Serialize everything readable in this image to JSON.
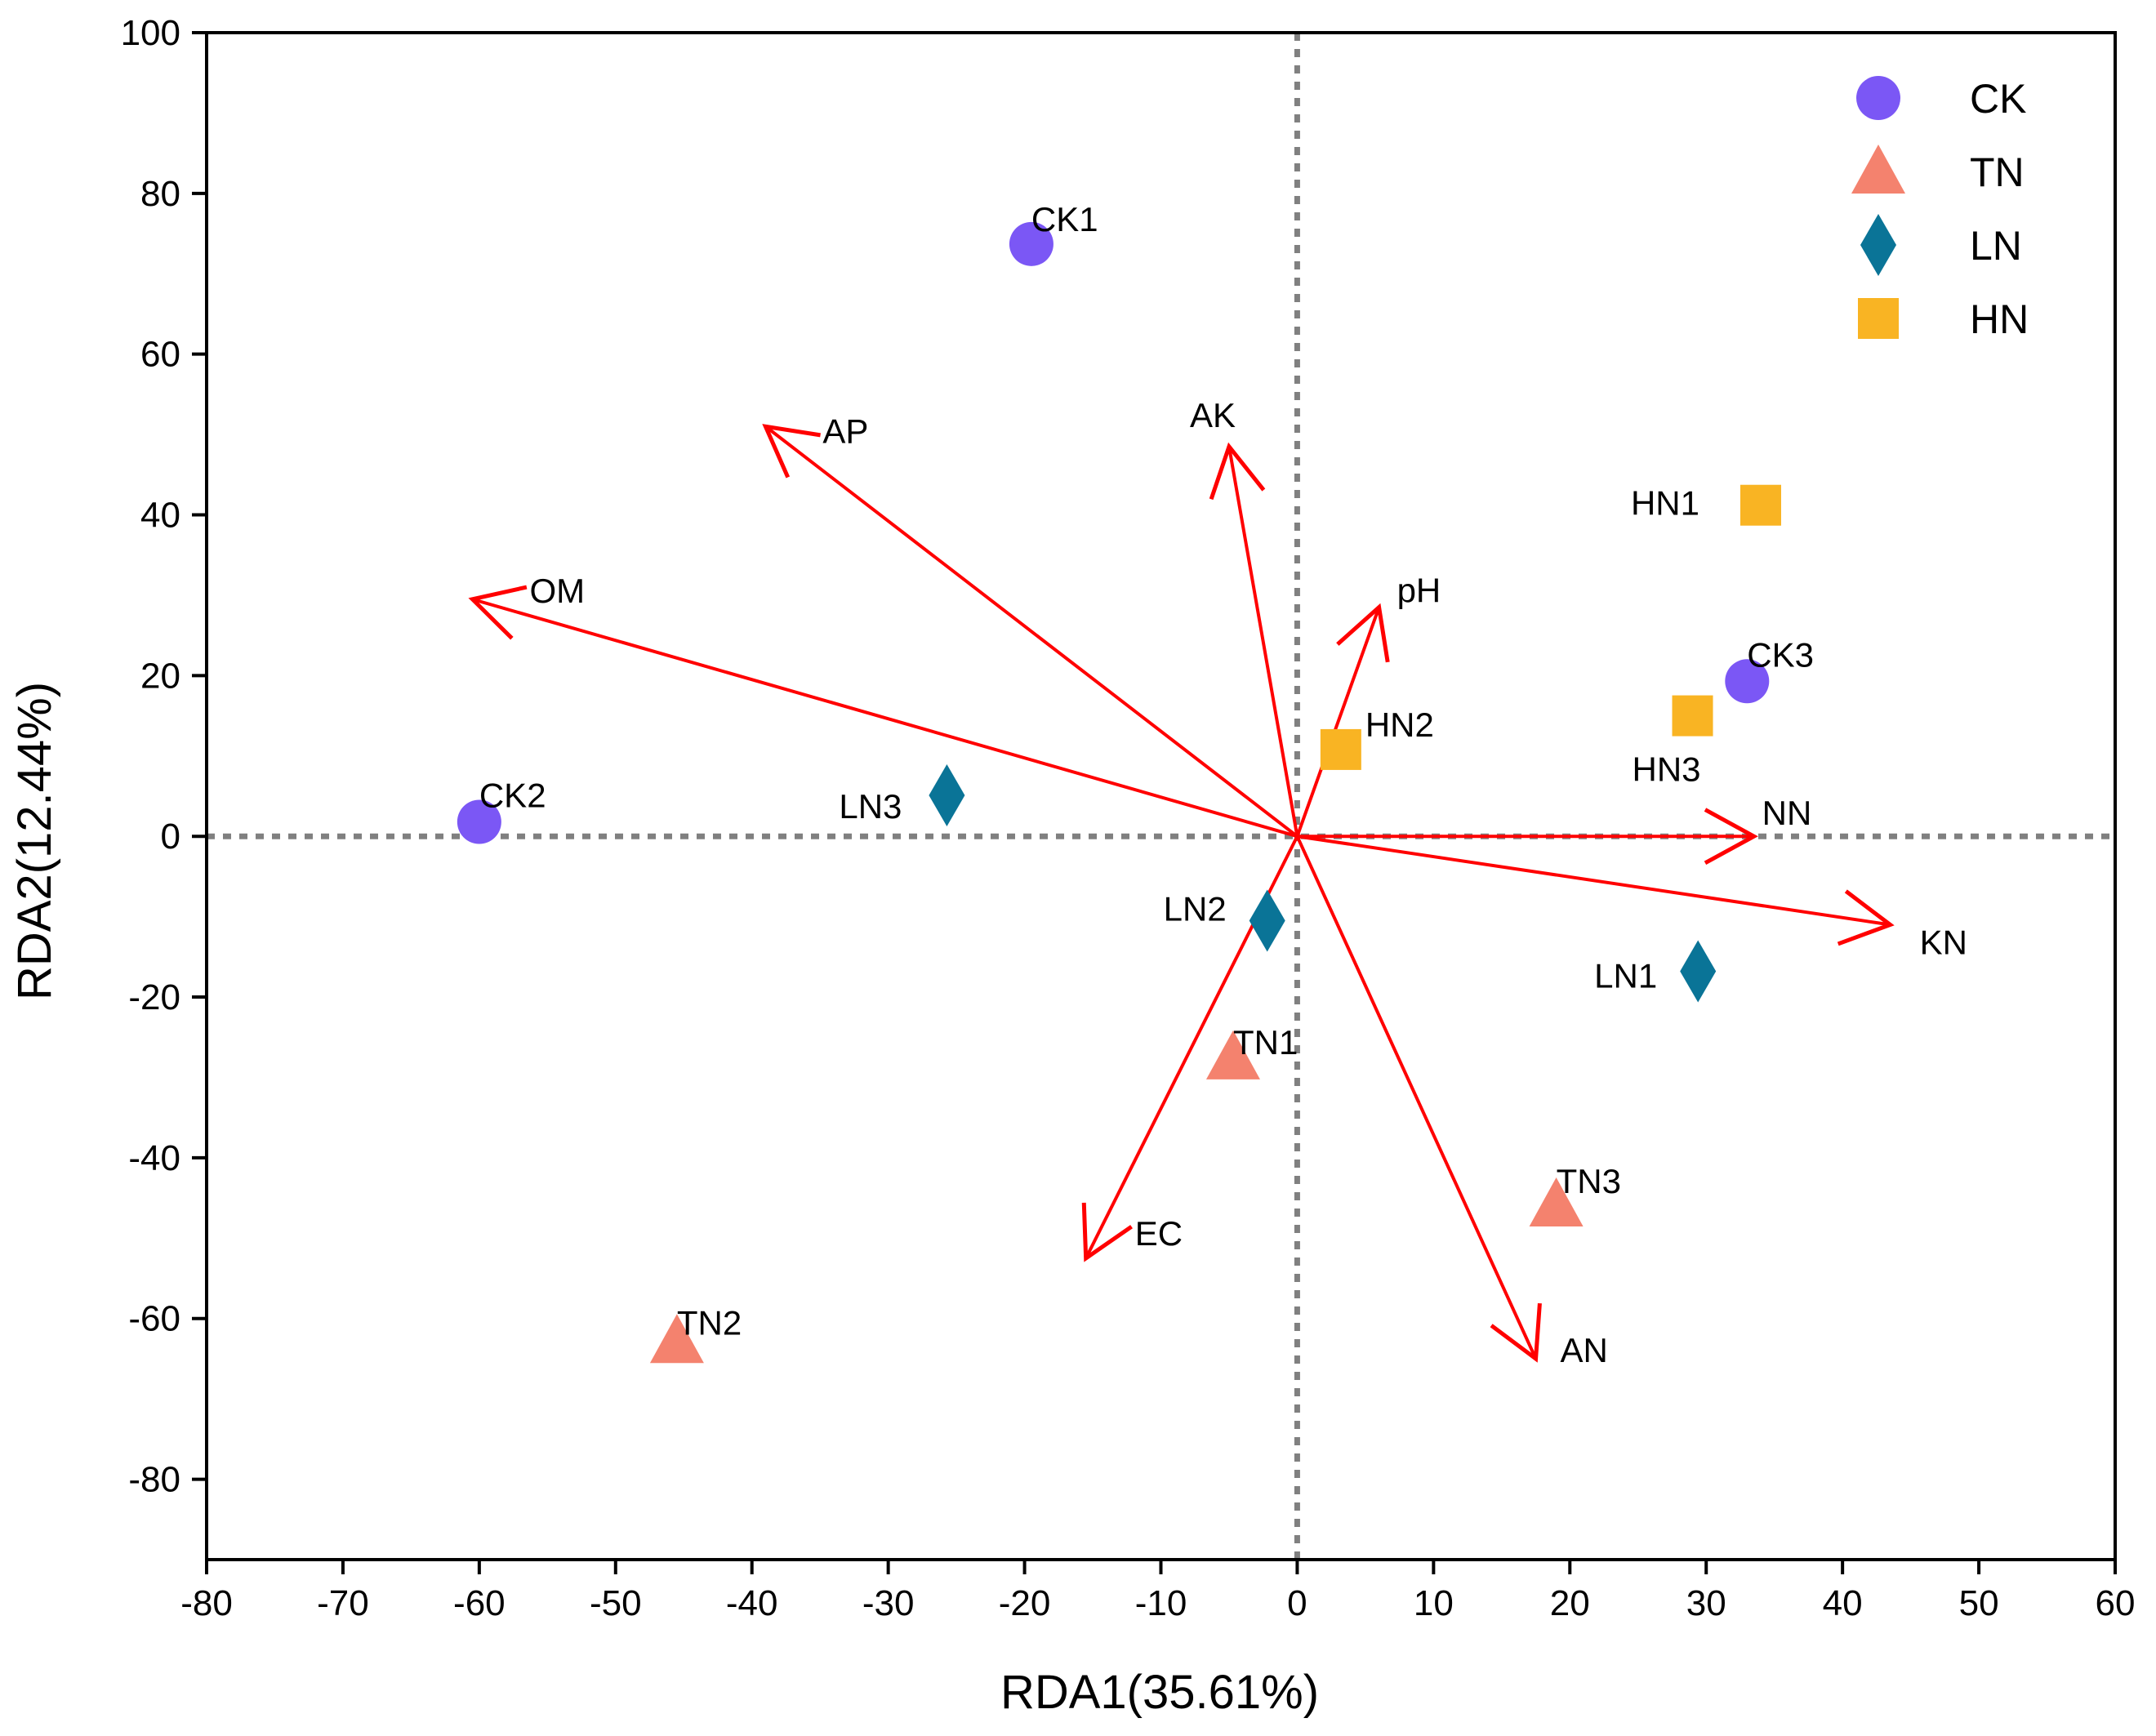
{
  "chart_data": {
    "type": "scatter",
    "subtype": "rda-biplot",
    "title": "",
    "xlabel": "RDA1(35.61%)",
    "ylabel": "RDA2(12.44%)",
    "xlim": [
      -80,
      60
    ],
    "ylim": [
      -90,
      100
    ],
    "xticks": [
      -80,
      -70,
      -60,
      -50,
      -40,
      -30,
      -20,
      -10,
      0,
      10,
      20,
      30,
      40,
      50,
      60
    ],
    "yticks": [
      -80,
      -60,
      -40,
      -20,
      0,
      20,
      40,
      60,
      80,
      100
    ],
    "grid": false,
    "reference_lines": {
      "x": 0,
      "y": 0,
      "style": "dotted",
      "color": "#808080"
    },
    "legend": {
      "position": "top-right"
    },
    "groups": [
      {
        "name": "CK",
        "marker": "circle",
        "color": "#7B57F5"
      },
      {
        "name": "TN",
        "marker": "triangle",
        "color": "#F4826E"
      },
      {
        "name": "LN",
        "marker": "diamond",
        "color": "#0A7497"
      },
      {
        "name": "HN",
        "marker": "square",
        "color": "#F9B423"
      }
    ],
    "points": [
      {
        "label": "CK1",
        "group": "CK",
        "x": -19.5,
        "y": 73.7
      },
      {
        "label": "CK2",
        "group": "CK",
        "x": -60,
        "y": 1.8
      },
      {
        "label": "CK3",
        "group": "CK",
        "x": 33,
        "y": 19.3
      },
      {
        "label": "TN1",
        "group": "TN",
        "x": -4.7,
        "y": -27.5
      },
      {
        "label": "TN2",
        "group": "TN",
        "x": -45.5,
        "y": -62.8
      },
      {
        "label": "TN3",
        "group": "TN",
        "x": 19,
        "y": -45.8
      },
      {
        "label": "LN1",
        "group": "LN",
        "x": 29.4,
        "y": -16.8
      },
      {
        "label": "LN2",
        "group": "LN",
        "x": -2.2,
        "y": -10.5
      },
      {
        "label": "LN3",
        "group": "LN",
        "x": -25.7,
        "y": 5.1
      },
      {
        "label": "HN1",
        "group": "HN",
        "x": 34,
        "y": 41.2
      },
      {
        "label": "HN2",
        "group": "HN",
        "x": 3.2,
        "y": 10.8
      },
      {
        "label": "HN3",
        "group": "HN",
        "x": 29,
        "y": 15
      }
    ],
    "vectors": [
      {
        "label": "AP",
        "x": -39,
        "y": 51
      },
      {
        "label": "AK",
        "x": -5,
        "y": 48.5
      },
      {
        "label": "OM",
        "x": -60.5,
        "y": 29.5
      },
      {
        "label": "pH",
        "x": 6,
        "y": 28.5
      },
      {
        "label": "NN",
        "x": 33.5,
        "y": 0
      },
      {
        "label": "KN",
        "x": 43.5,
        "y": -11
      },
      {
        "label": "EC",
        "x": -15.5,
        "y": -52.5
      },
      {
        "label": "AN",
        "x": 17.5,
        "y": -65
      }
    ],
    "vector_color": "#FF0000"
  }
}
